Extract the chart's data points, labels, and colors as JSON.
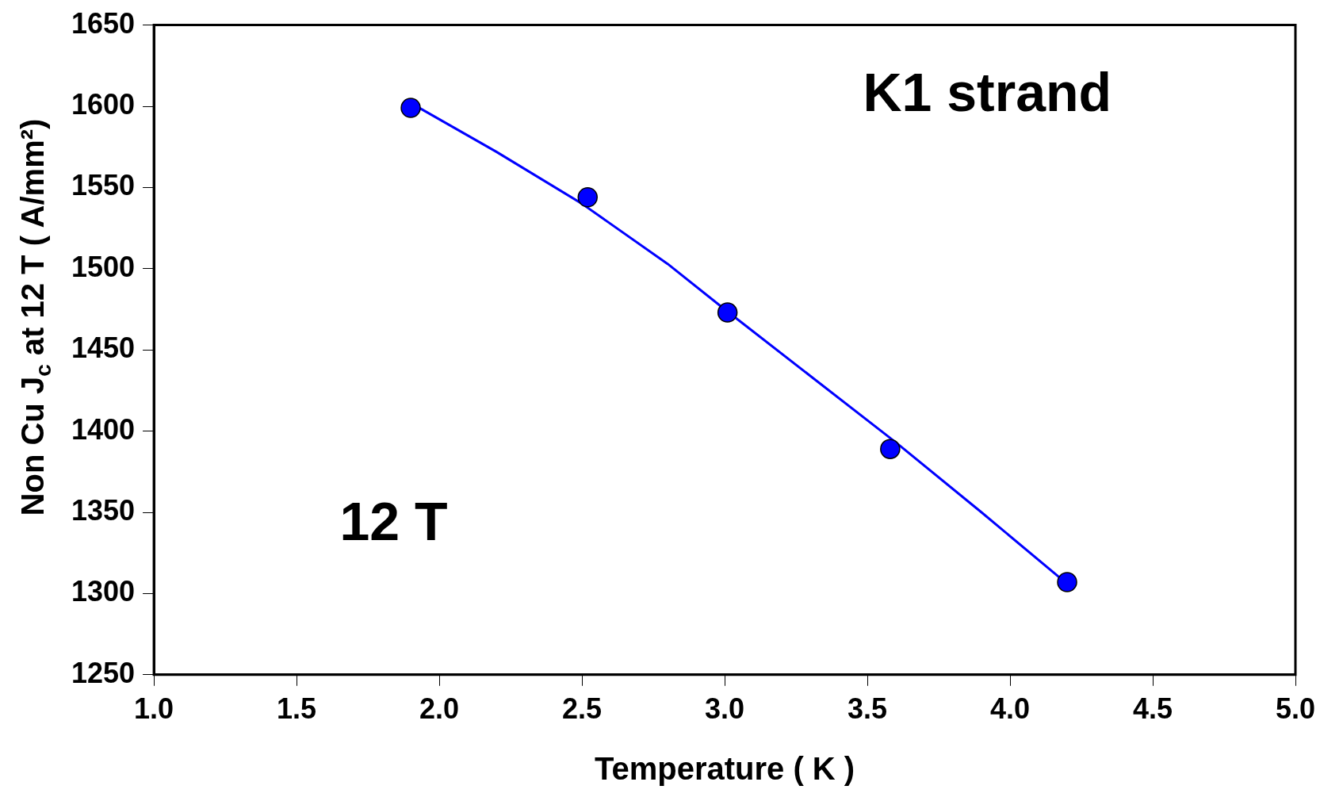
{
  "chart_data": {
    "type": "scatter",
    "xlabel": "Temperature ( K )",
    "ylabel": "Non Cu J$_{c}$ at 12 T ( A/mm²)",
    "annotations": [
      "K1 strand",
      "12 T"
    ],
    "series": [
      {
        "color": "#0000ff",
        "marker": "circle",
        "x": [
          1.9,
          2.52,
          3.01,
          3.58,
          4.2
        ],
        "values": [
          1599,
          1544,
          1473,
          1389,
          1307
        ]
      },
      {
        "type": "line",
        "color": "#0000ff",
        "marker": "none",
        "x": [
          1.9,
          2.2,
          2.5,
          2.8,
          3.0,
          3.3,
          3.6,
          3.9,
          4.2
        ],
        "values": [
          1602,
          1572,
          1540,
          1503,
          1475,
          1434,
          1393,
          1350,
          1306
        ]
      }
    ],
    "xlim": [
      1.0,
      5.0
    ],
    "xticks": [
      {
        "value": 1,
        "label": "1.0"
      },
      {
        "value": 1.5,
        "label": "1.5"
      },
      {
        "value": 2,
        "label": "2.0"
      },
      {
        "value": 2.5,
        "label": "2.5"
      },
      {
        "value": 3,
        "label": "3.0"
      },
      {
        "value": 3.5,
        "label": "3.5"
      },
      {
        "value": 4,
        "label": "4.0"
      },
      {
        "value": 4.5,
        "label": "4.5"
      },
      {
        "value": 5,
        "label": "5.0"
      }
    ],
    "ylim": [
      1250,
      1650
    ],
    "yticks": [
      1250,
      1300,
      1350,
      1400,
      1450,
      1500,
      1550,
      1600,
      1650
    ],
    "grid": false,
    "legend": false
  }
}
